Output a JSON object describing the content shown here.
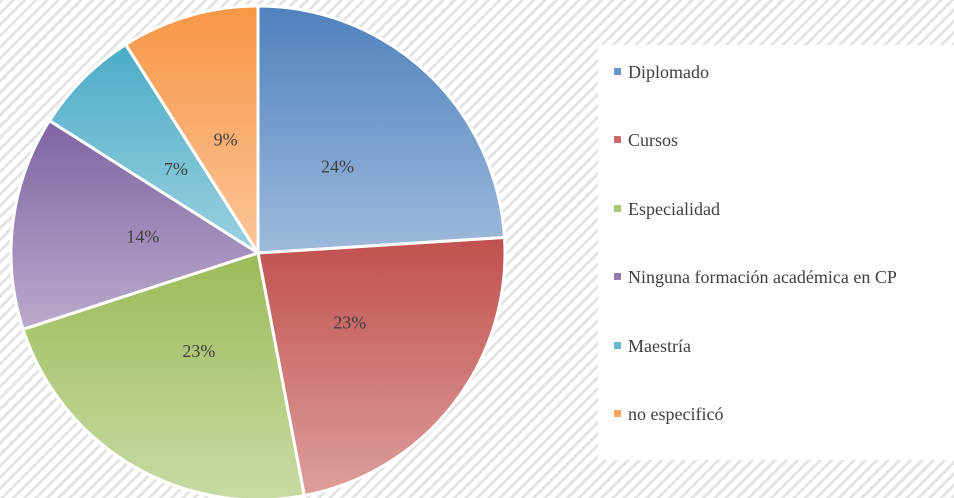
{
  "chart_data": {
    "type": "pie",
    "categories": [
      "Diplomado",
      "Cursos",
      "Especialidad",
      "Ninguna formación académica en CP",
      "Maestría",
      "no especificó"
    ],
    "values": [
      24,
      23,
      23,
      14,
      7,
      9
    ],
    "value_labels": [
      "24%",
      "23%",
      "23%",
      "14%",
      "7%",
      "9%"
    ],
    "colors": [
      "#4f81bd",
      "#c0504d",
      "#9bbb59",
      "#8064a2",
      "#4bacc6",
      "#f79646"
    ],
    "legend": "right"
  }
}
